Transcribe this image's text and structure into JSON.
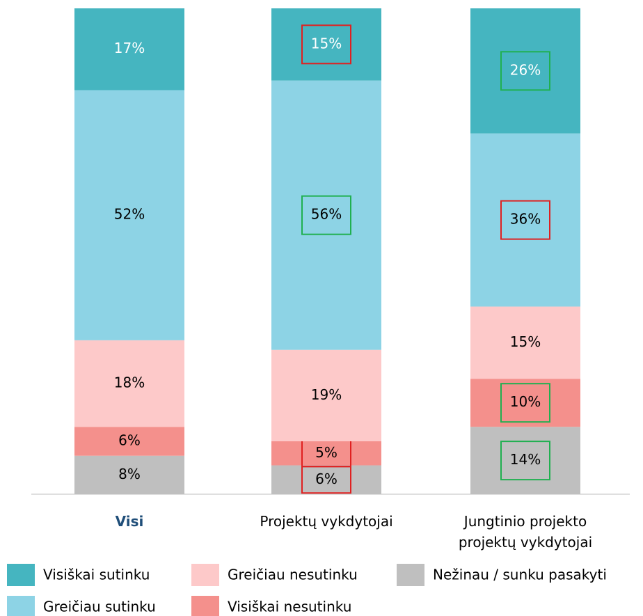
{
  "chart_data": {
    "type": "stacked_bar",
    "categories": [
      "Visi",
      "Projektų vykdytojai",
      "Jungtinio projekto projektų vykdytojai"
    ],
    "ylim": [
      0,
      101
    ],
    "series": [
      {
        "name": "Visiškai sutinku",
        "color": "#45b5c0",
        "label_color": "#ffffff",
        "values": [
          17,
          15,
          26
        ],
        "value_labels": [
          "17%",
          "15%",
          "26%"
        ],
        "box_colors": [
          null,
          "#e02020",
          "#20b050"
        ]
      },
      {
        "name": "Greičiau sutinku",
        "color": "#8dd3e5",
        "label_color": "#000000",
        "values": [
          52,
          56,
          36
        ],
        "value_labels": [
          "52%",
          "56%",
          "36%"
        ],
        "box_colors": [
          null,
          "#20b050",
          "#e02020"
        ]
      },
      {
        "name": "Greičiau nesutinku",
        "color": "#fdc9c9",
        "label_color": "#000000",
        "values": [
          18,
          19,
          15
        ],
        "value_labels": [
          "18%",
          "19%",
          "15%"
        ],
        "box_colors": [
          null,
          null,
          null
        ]
      },
      {
        "name": "Visiškai nesutinku",
        "color": "#f4908c",
        "label_color": "#000000",
        "values": [
          6,
          5,
          10
        ],
        "value_labels": [
          "6%",
          "5%",
          "10%"
        ],
        "box_colors": [
          null,
          "#e02020",
          "#20b050"
        ]
      },
      {
        "name": "Nežinau / sunku pasakyti",
        "color": "#bfbfbf",
        "label_color": "#000000",
        "values": [
          8,
          6,
          14
        ],
        "value_labels": [
          "8%",
          "6%",
          "14%"
        ],
        "box_colors": [
          null,
          "#e02020",
          "#20b050"
        ]
      }
    ]
  }
}
